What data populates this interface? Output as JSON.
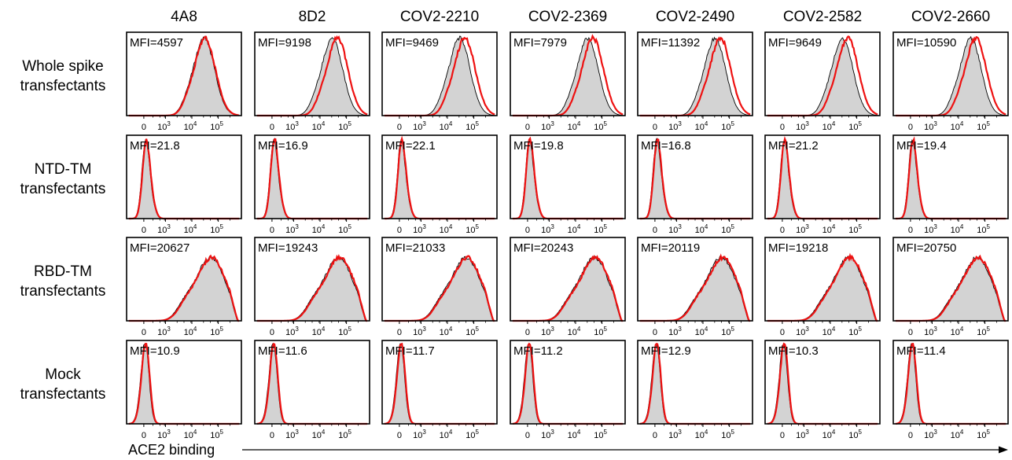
{
  "chart_data": {
    "type": "histogram-grid",
    "x_axis_label": "ACE2 binding",
    "x_scale": "biexponential",
    "x_tick_labels": [
      "0",
      "10³",
      "10⁴",
      "10⁵"
    ],
    "x_tick_values": [
      0,
      1000,
      10000,
      100000
    ],
    "columns": [
      "4A8",
      "8D2",
      "COV2-2210",
      "COV2-2369",
      "COV2-2490",
      "COV2-2582",
      "COV2-2660"
    ],
    "rows": [
      {
        "label_lines": [
          "Whole spike",
          "transfectants"
        ],
        "mfi": [
          "4597",
          "9198",
          "9469",
          "7979",
          "11392",
          "9649",
          "10590"
        ]
      },
      {
        "label_lines": [
          "NTD-TM",
          "transfectants"
        ],
        "mfi": [
          "21.8",
          "16.9",
          "22.1",
          "19.8",
          "16.8",
          "21.2",
          "19.4"
        ]
      },
      {
        "label_lines": [
          "RBD-TM",
          "transfectants"
        ],
        "mfi": [
          "20627",
          "19243",
          "21033",
          "20243",
          "20119",
          "19218",
          "20750"
        ]
      },
      {
        "label_lines": [
          "Mock",
          "transfectants"
        ],
        "mfi": [
          "10.9",
          "11.6",
          "11.7",
          "11.2",
          "12.9",
          "10.3",
          "11.4"
        ]
      }
    ],
    "mfi_prefix": "MFI=",
    "series_styles": {
      "control": {
        "fill": "#d3d3d3",
        "stroke": "#000000"
      },
      "antibody": {
        "fill": "none",
        "stroke": "#ee1111"
      }
    }
  }
}
